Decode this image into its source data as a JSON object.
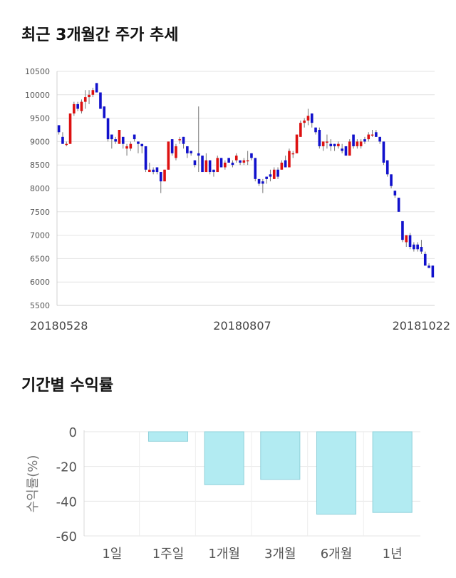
{
  "section1_title": "최근 3개월간 주가 추세",
  "section2_title": "기간별 수익률",
  "chart_data": [
    {
      "type": "candlestick",
      "title": "최근 3개월간 주가 추세",
      "ylim": [
        5500,
        10500
      ],
      "yticks": [
        5500,
        6000,
        6500,
        7000,
        7500,
        8000,
        8500,
        9000,
        9500,
        10000,
        10500
      ],
      "x_tick_labels": [
        "20180528",
        "20180807",
        "20181022"
      ],
      "grid": true,
      "up_color": "#dd1111",
      "down_color": "#1111cc",
      "candles": [
        [
          9350,
          9350,
          9150,
          9200
        ],
        [
          9100,
          9200,
          8950,
          8950
        ],
        [
          8950,
          9000,
          8900,
          8950
        ],
        [
          8950,
          9600,
          8950,
          9600
        ],
        [
          9600,
          9850,
          9550,
          9800
        ],
        [
          9800,
          9850,
          9650,
          9700
        ],
        [
          9650,
          9900,
          9600,
          9850
        ],
        [
          9850,
          10100,
          9700,
          9950
        ],
        [
          9950,
          10100,
          9800,
          10000
        ],
        [
          10000,
          10150,
          9950,
          10100
        ],
        [
          10250,
          10250,
          10050,
          10050
        ],
        [
          10050,
          10050,
          9700,
          9700
        ],
        [
          9750,
          9750,
          9500,
          9500
        ],
        [
          9500,
          9500,
          9000,
          9050
        ],
        [
          9150,
          9150,
          8850,
          9050
        ],
        [
          9050,
          9100,
          8950,
          9000
        ],
        [
          8950,
          9250,
          8950,
          9250
        ],
        [
          9100,
          9100,
          8850,
          8950
        ],
        [
          8850,
          8950,
          8700,
          8900
        ],
        [
          8850,
          9000,
          8800,
          8950
        ],
        [
          9150,
          9150,
          9000,
          9050
        ],
        [
          9000,
          9000,
          8750,
          8950
        ],
        [
          8950,
          8950,
          8750,
          8900
        ],
        [
          8900,
          8900,
          8350,
          8400
        ],
        [
          8350,
          8550,
          8350,
          8400
        ],
        [
          8400,
          8450,
          8300,
          8350
        ],
        [
          8450,
          8450,
          8300,
          8350
        ],
        [
          8350,
          8350,
          7900,
          8150
        ],
        [
          8150,
          8400,
          8150,
          8400
        ],
        [
          8400,
          9000,
          8400,
          9000
        ],
        [
          9050,
          9050,
          8700,
          8750
        ],
        [
          8650,
          8950,
          8600,
          8900
        ],
        [
          9050,
          9100,
          8950,
          9050
        ],
        [
          9100,
          9100,
          8850,
          8950
        ],
        [
          8900,
          8900,
          8650,
          8750
        ],
        [
          8800,
          8800,
          8700,
          8750
        ],
        [
          8600,
          8600,
          8450,
          8500
        ],
        [
          8750,
          9750,
          8350,
          8700
        ],
        [
          8700,
          8700,
          8350,
          8350
        ],
        [
          8350,
          8750,
          8350,
          8600
        ],
        [
          8600,
          8600,
          8300,
          8350
        ],
        [
          8400,
          8400,
          8250,
          8350
        ],
        [
          8350,
          8700,
          8350,
          8650
        ],
        [
          8650,
          8650,
          8450,
          8450
        ],
        [
          8450,
          8600,
          8400,
          8550
        ],
        [
          8650,
          8650,
          8550,
          8550
        ],
        [
          8550,
          8600,
          8450,
          8500
        ],
        [
          8600,
          8750,
          8550,
          8700
        ],
        [
          8600,
          8600,
          8500,
          8550
        ],
        [
          8550,
          8650,
          8500,
          8600
        ],
        [
          8600,
          8800,
          8500,
          8600
        ],
        [
          8750,
          8750,
          8600,
          8650
        ],
        [
          8650,
          8650,
          8150,
          8200
        ],
        [
          8200,
          8200,
          8050,
          8100
        ],
        [
          8150,
          8200,
          7900,
          8100
        ],
        [
          8250,
          8250,
          8100,
          8200
        ],
        [
          8300,
          8400,
          8150,
          8250
        ],
        [
          8200,
          8450,
          8200,
          8400
        ],
        [
          8400,
          8450,
          8200,
          8250
        ],
        [
          8400,
          8600,
          8400,
          8550
        ],
        [
          8600,
          8700,
          8450,
          8450
        ],
        [
          8450,
          8850,
          8450,
          8800
        ],
        [
          8750,
          8800,
          8650,
          8750
        ],
        [
          8750,
          9150,
          8750,
          9150
        ],
        [
          9100,
          9450,
          9100,
          9400
        ],
        [
          9400,
          9500,
          9300,
          9450
        ],
        [
          9450,
          9700,
          9350,
          9550
        ],
        [
          9600,
          9600,
          9300,
          9400
        ],
        [
          9300,
          9300,
          9150,
          9200
        ],
        [
          9250,
          9300,
          8850,
          8900
        ],
        [
          8900,
          9000,
          8800,
          9000
        ],
        [
          9000,
          9150,
          8850,
          9000
        ],
        [
          8950,
          9050,
          8800,
          8900
        ],
        [
          8950,
          8950,
          8800,
          8900
        ],
        [
          8900,
          9000,
          8850,
          8950
        ],
        [
          8850,
          8950,
          8750,
          8800
        ],
        [
          8900,
          8900,
          8700,
          8700
        ],
        [
          8700,
          9050,
          8700,
          9000
        ],
        [
          9150,
          9150,
          8850,
          8900
        ],
        [
          8900,
          9050,
          8850,
          9000
        ],
        [
          8900,
          9050,
          8850,
          9000
        ],
        [
          9050,
          9100,
          8950,
          9000
        ],
        [
          9050,
          9200,
          9000,
          9150
        ],
        [
          9150,
          9250,
          9100,
          9150
        ],
        [
          9200,
          9250,
          9100,
          9100
        ],
        [
          9100,
          9100,
          8950,
          9000
        ],
        [
          9000,
          9000,
          8500,
          8550
        ],
        [
          8600,
          8600,
          8250,
          8300
        ],
        [
          8300,
          8300,
          8000,
          8050
        ],
        [
          7950,
          7950,
          7800,
          7850
        ],
        [
          7800,
          7800,
          7500,
          7500
        ],
        [
          7300,
          7300,
          6850,
          6900
        ],
        [
          6850,
          7000,
          6750,
          7000
        ],
        [
          7000,
          7050,
          6700,
          6750
        ],
        [
          6800,
          6850,
          6650,
          6700
        ],
        [
          6800,
          6850,
          6650,
          6700
        ],
        [
          6750,
          6900,
          6600,
          6650
        ],
        [
          6600,
          6650,
          6400,
          6350
        ],
        [
          6350,
          6400,
          6300,
          6300
        ],
        [
          6350,
          6350,
          6100,
          6100
        ]
      ]
    },
    {
      "type": "bar",
      "title": "기간별 수익률",
      "categories": [
        "1일",
        "1주일",
        "1개월",
        "3개월",
        "6개월",
        "1년"
      ],
      "values": [
        0,
        -5.5,
        -30.5,
        -27.5,
        -47.5,
        -46.5
      ],
      "ylabel": "수익률(%)",
      "ylim": [
        -60,
        0
      ],
      "yticks": [
        0,
        -20,
        -40,
        -60
      ],
      "bar_color": "#b2ebf2",
      "bar_edge_color": "#8fd0da"
    }
  ]
}
